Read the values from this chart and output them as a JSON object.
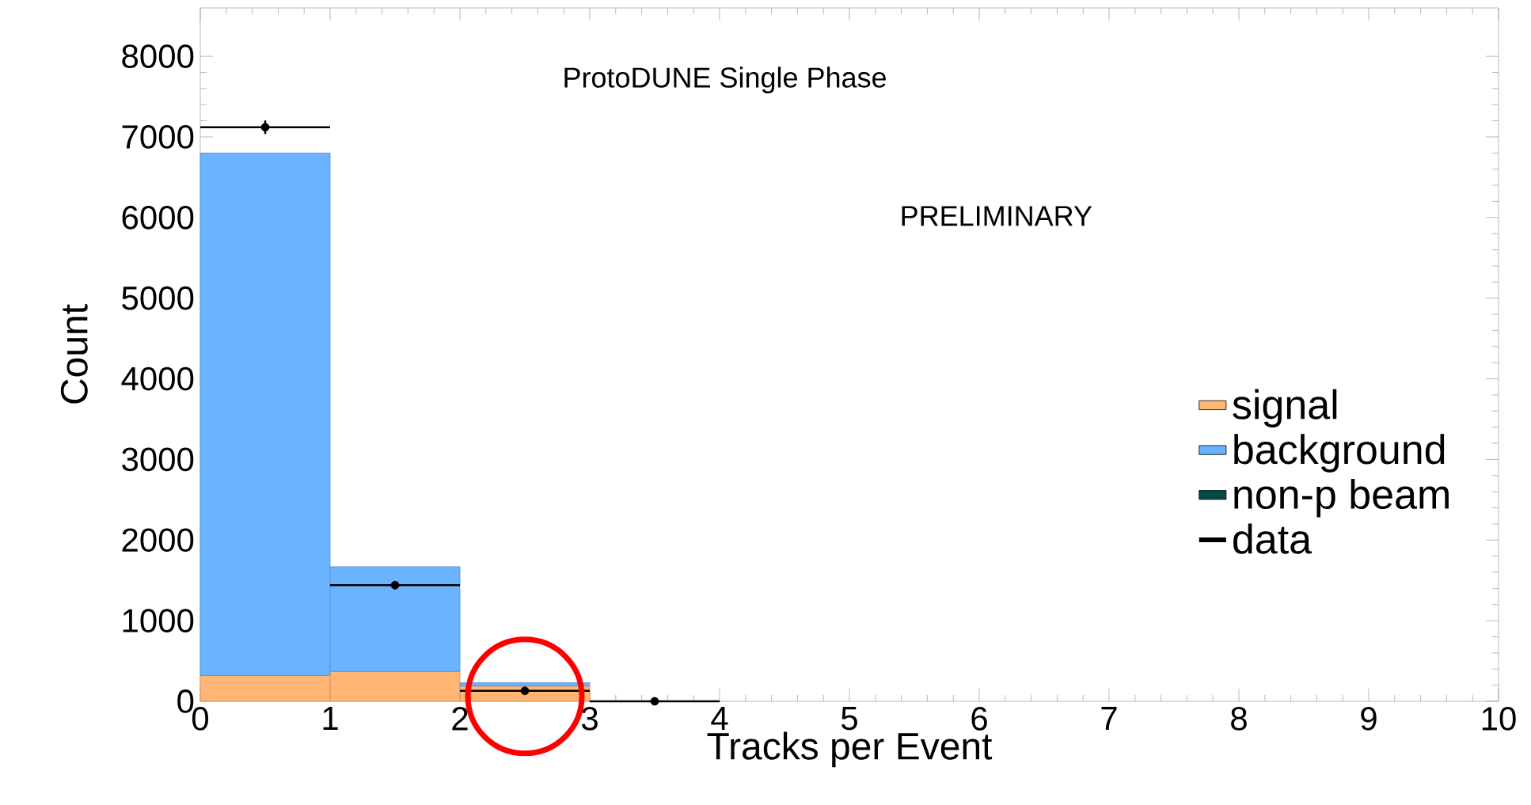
{
  "chart_data": {
    "type": "bar",
    "xlabel": "Tracks per Event",
    "ylabel": "Count",
    "annotations": [
      "ProtoDUNE Single Phase",
      "PRELIMINARY"
    ],
    "x": [
      0.5,
      1.5,
      2.5,
      3.5,
      4.5,
      5.5,
      6.5,
      7.5,
      8.5,
      9.5
    ],
    "stacked": true,
    "series": [
      {
        "name": "signal",
        "color": "#ffb574",
        "values": [
          320,
          370,
          190,
          0,
          0,
          0,
          0,
          0,
          0,
          0
        ]
      },
      {
        "name": "background",
        "color": "#6bb3ff",
        "values": [
          6480,
          1300,
          40,
          0,
          0,
          0,
          0,
          0,
          0,
          0
        ]
      },
      {
        "name": "non-p beam",
        "color": "#024a46",
        "values": [
          0,
          0,
          0,
          0,
          0,
          0,
          0,
          0,
          0,
          0
        ]
      },
      {
        "name": "data",
        "type": "scatter",
        "color": "#000000",
        "x": [
          0.5,
          1.5,
          2.5,
          3.5
        ],
        "values": [
          7120,
          1440,
          130,
          0
        ],
        "errors": [
          84,
          38,
          null,
          null
        ],
        "xerrors": [
          0.5,
          0.5,
          0.5,
          0.5
        ]
      }
    ],
    "xlim": [
      0,
      10
    ],
    "ylim": [
      0,
      8600
    ],
    "xticks": [
      0,
      1,
      2,
      3,
      4,
      5,
      6,
      7,
      8,
      9,
      10
    ],
    "yticks": [
      0,
      1000,
      2000,
      3000,
      4000,
      5000,
      6000,
      7000,
      8000
    ],
    "legend": "right",
    "grid": false
  }
}
